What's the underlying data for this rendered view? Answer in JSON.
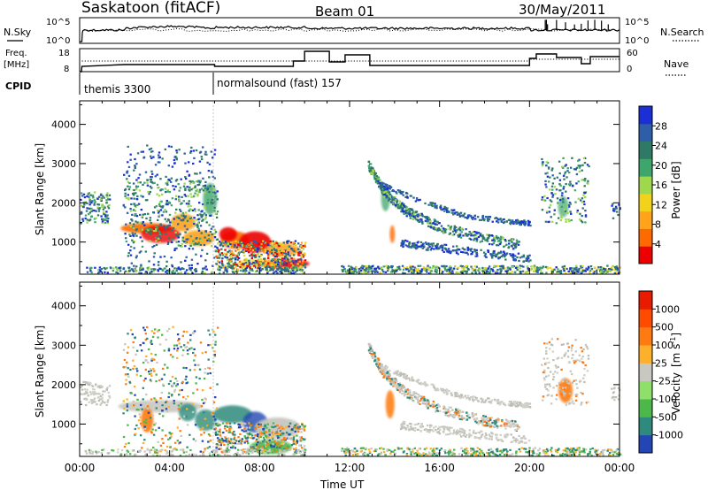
{
  "header": {
    "station": "Saskatoon (fitACF)",
    "beam": "Beam 01",
    "date": "30/May/2011"
  },
  "aux_panels": {
    "nsky_label": "N.Sky",
    "nsky_ticks": [
      "10^5",
      "10^0"
    ],
    "nsearch_label": "N.Search",
    "nsearch_ticks": [
      "10^5",
      "10^0"
    ],
    "freq_label_1": "Freq.",
    "freq_label_2": "[MHz]",
    "freq_ticks": [
      "18",
      "8"
    ],
    "nave_label": "Nave",
    "nave_ticks": [
      "60",
      "0"
    ],
    "cpid_label": "CPID",
    "cpid_segments": [
      "themis 3300",
      "normalsound (fast) 157"
    ]
  },
  "chart_data": [
    {
      "type": "heatmap",
      "name": "power",
      "ylabel": "Slant Range [km]",
      "xlabel": "",
      "ylim": [
        180,
        4600
      ],
      "y_ticks": [
        "1000",
        "2000",
        "3000",
        "4000"
      ],
      "colorbar": {
        "label": "Power [dB]",
        "ticks": [
          "28",
          "24",
          "20",
          "16",
          "12",
          "8",
          "4"
        ],
        "colors": [
          "#ee0000",
          "#ff6a00",
          "#ffa31a",
          "#f2d21a",
          "#9fd84c",
          "#3fa66b",
          "#2f7a66",
          "#2f5ea8",
          "#1a2fd6"
        ]
      }
    },
    {
      "type": "heatmap",
      "name": "velocity",
      "ylabel": "Slant Range [km]",
      "xlabel": "Time UT",
      "ylim": [
        180,
        4600
      ],
      "y_ticks": [
        "1000",
        "2000",
        "3000",
        "4000"
      ],
      "x_ticks": [
        "00:00",
        "04:00",
        "08:00",
        "12:00",
        "16:00",
        "20:00",
        "00:00"
      ],
      "colorbar": {
        "label": "Velocity",
        "unit": "[m s",
        "unit_sup": "-1",
        "unit_end": "]",
        "ticks": [
          "1000",
          "500",
          "100",
          "25",
          "-25",
          "-100",
          "-500",
          "-1000"
        ],
        "colors": [
          "#2446b4",
          "#2e8a7c",
          "#4db84a",
          "#8ee06a",
          "#c8c8c0",
          "#ffb02a",
          "#ff7a10",
          "#ff4a00",
          "#e81a00"
        ]
      }
    }
  ]
}
